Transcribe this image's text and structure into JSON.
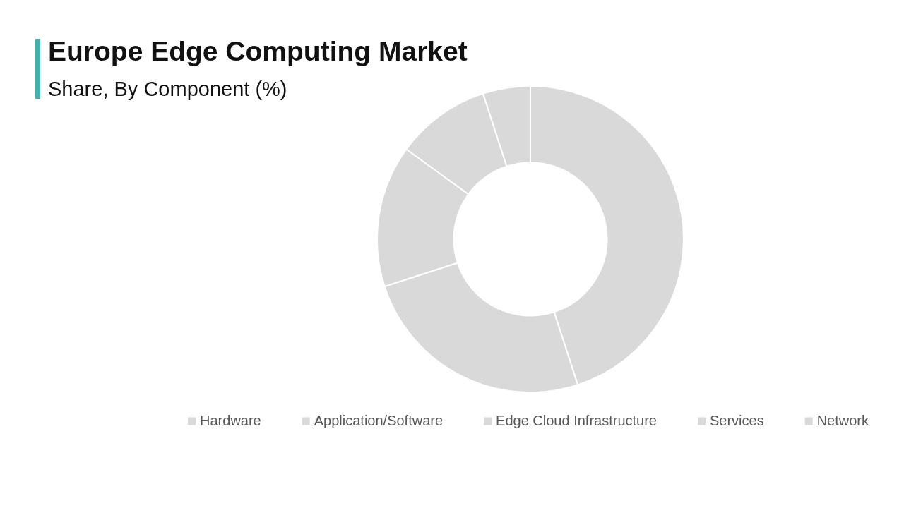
{
  "chart_data": {
    "type": "donut",
    "title": "Europe Edge Computing Market",
    "subtitle": "Share, By Component (%)",
    "categories": [
      "Hardware",
      "Application/Software",
      "Edge Cloud Infrastructure",
      "Services",
      "Network"
    ],
    "values": [
      45,
      25,
      15,
      10,
      5
    ],
    "colors": [
      "#d9d9d9",
      "#d9d9d9",
      "#d9d9d9",
      "#d9d9d9",
      "#d9d9d9"
    ],
    "legend": "bottom"
  }
}
